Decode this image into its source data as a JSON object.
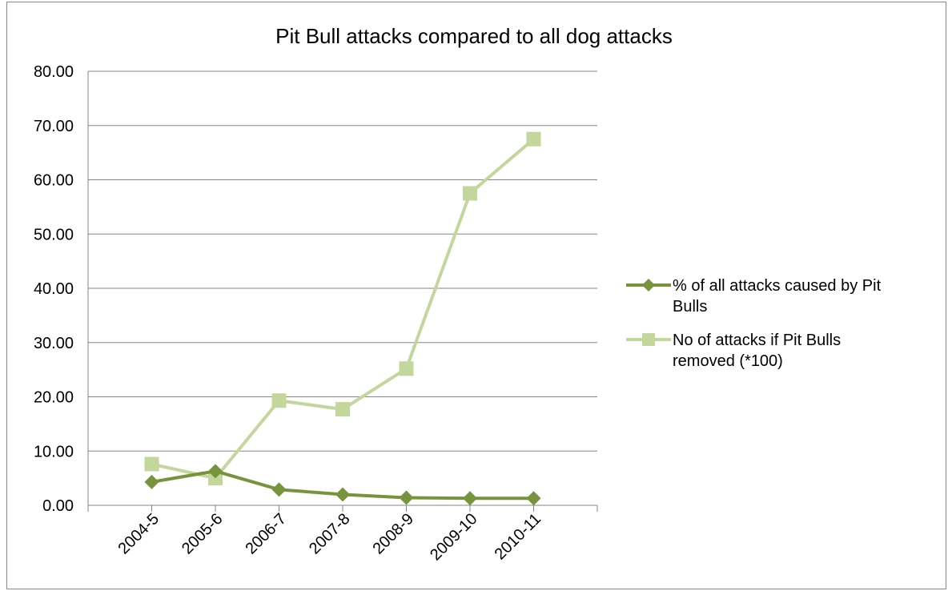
{
  "chart_data": {
    "type": "line",
    "title": "Pit Bull attacks compared to all dog attacks",
    "categories": [
      "2004-5",
      "2005-6",
      "2006-7",
      "2007-8",
      "2008-9",
      "2009-10",
      "2010-11"
    ],
    "ylim": [
      0,
      80
    ],
    "yticks": [
      "0.00",
      "10.00",
      "20.00",
      "30.00",
      "40.00",
      "50.00",
      "60.00",
      "70.00",
      "80.00"
    ],
    "grid": true,
    "legend_position": "right",
    "series": [
      {
        "name": "% of all attacks caused by Pit Bulls",
        "legend_lines": [
          "% of all attacks caused by Pit",
          "Bulls"
        ],
        "marker": "diamond",
        "color": "#77933c",
        "values": [
          4.3,
          6.3,
          2.9,
          2.0,
          1.4,
          1.3,
          1.3
        ]
      },
      {
        "name": "No of attacks if Pit Bulls removed (*100)",
        "legend_lines": [
          "No of attacks if Pit Bulls",
          "removed (*100)"
        ],
        "marker": "square",
        "color": "#c3d69b",
        "values": [
          7.6,
          5.0,
          19.3,
          17.7,
          25.2,
          57.5,
          67.5
        ]
      }
    ]
  }
}
